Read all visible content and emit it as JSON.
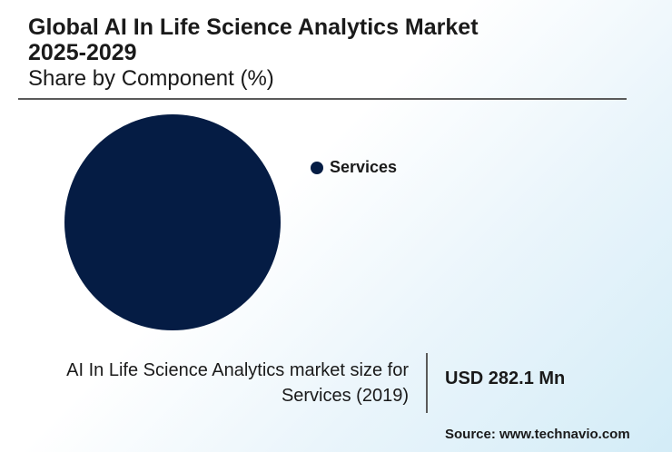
{
  "header": {
    "title_line1": "Global AI In Life Science Analytics Market",
    "title_line2": "2025-2029",
    "subtitle": "Share by Component (%)"
  },
  "chart_data": {
    "type": "pie",
    "title": "Global AI In Life Science Analytics Market 2025-2029",
    "subtitle": "Share by Component (%)",
    "categories": [
      "Services"
    ],
    "values": [
      100
    ],
    "colors": [
      "#051c44"
    ],
    "legend_position": "right"
  },
  "stat": {
    "label_line1": "AI In Life Science Analytics market size for",
    "label_line2": "Services (2019)",
    "value": "USD 282.1 Mn"
  },
  "footer": {
    "source": "Source: www.technavio.com"
  }
}
